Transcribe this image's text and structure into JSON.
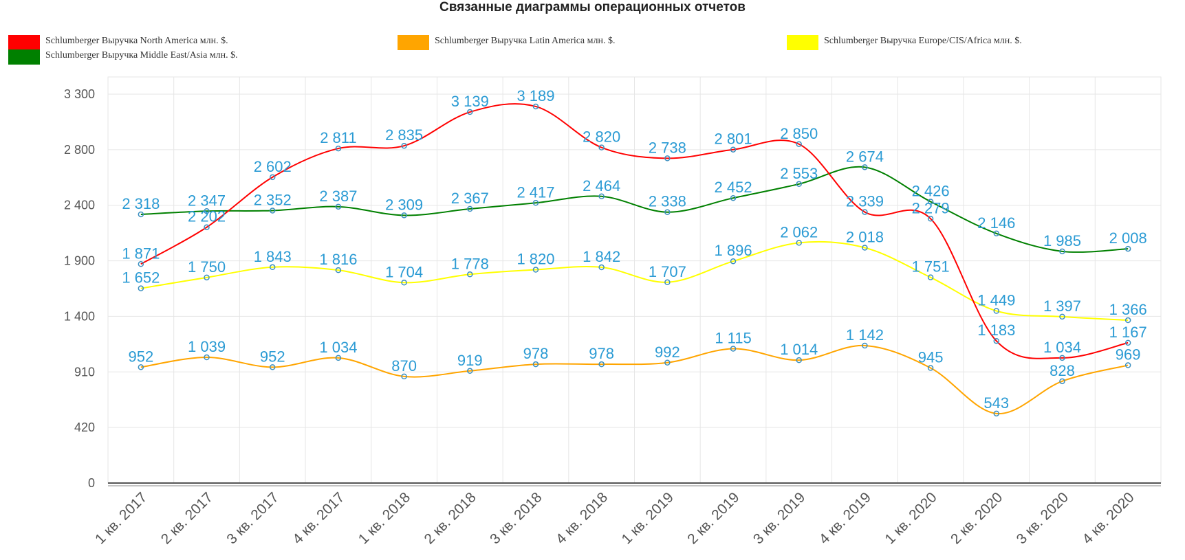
{
  "chart_data": {
    "type": "line",
    "title": "Связанные диаграммы операционных отчетов",
    "xlabel": "",
    "ylabel": "",
    "categories": [
      "1 кв. 2017",
      "2 кв. 2017",
      "3 кв. 2017",
      "4 кв. 2017",
      "1 кв. 2018",
      "2 кв. 2018",
      "3 кв. 2018",
      "4 кв. 2018",
      "1 кв. 2019",
      "2 кв. 2019",
      "3 кв. 2019",
      "4 кв. 2019",
      "1 кв. 2020",
      "2 кв. 2020",
      "3 кв. 2020",
      "4 кв. 2020"
    ],
    "yticks": [
      0,
      420,
      910,
      1400,
      1900,
      2400,
      2800,
      3300
    ],
    "ytick_labels": [
      "0",
      "420",
      "910",
      "1 400",
      "1 900",
      "2 400",
      "2 800",
      "3 300"
    ],
    "grid": true,
    "legend_position": "top",
    "series": [
      {
        "name": "Schlumberger Выручка North America млн. $.",
        "color": "#ff0000",
        "values": [
          1871,
          2202,
          2602,
          2811,
          2835,
          3139,
          3189,
          2820,
          2738,
          2801,
          2850,
          2339,
          2279,
          1183,
          1034,
          1167
        ],
        "labels": [
          "1 871",
          "2 202",
          "2 602",
          "2 811",
          "2 835",
          "3 139",
          "3 189",
          "2 820",
          "2 738",
          "2 801",
          "2 850",
          "2 339",
          "2 279",
          "1 183",
          "1 034",
          "1 167"
        ]
      },
      {
        "name": "Schlumberger Выручка Latin America млн. $.",
        "color": "#ffa500",
        "values": [
          952,
          1039,
          952,
          1034,
          870,
          919,
          978,
          978,
          992,
          1115,
          1014,
          1142,
          945,
          543,
          828,
          969
        ],
        "labels": [
          "952",
          "1 039",
          "952",
          "1 034",
          "870",
          "919",
          "978",
          "978",
          "992",
          "1 115",
          "1 014",
          "1 142",
          "945",
          "543",
          "828",
          "969"
        ]
      },
      {
        "name": "Schlumberger Выручка Europe/CIS/Africa млн. $.",
        "color": "#ffff00",
        "values": [
          1652,
          1750,
          1843,
          1816,
          1704,
          1778,
          1820,
          1842,
          1707,
          1896,
          2062,
          2018,
          1751,
          1449,
          1397,
          1366
        ],
        "labels": [
          "1 652",
          "1 750",
          "1 843",
          "1 816",
          "1 704",
          "1 778",
          "1 820",
          "1 842",
          "1 707",
          "1 896",
          "2 062",
          "2 018",
          "1 751",
          "1 449",
          "1 397",
          "1 366"
        ]
      },
      {
        "name": "Schlumberger Выручка Middle East/Asia млн. $.",
        "color": "#008000",
        "values": [
          2318,
          2347,
          2352,
          2387,
          2309,
          2367,
          2417,
          2464,
          2338,
          2452,
          2553,
          2674,
          2426,
          2146,
          1985,
          2008
        ],
        "labels": [
          "2 318",
          "2 347",
          "2 352",
          "2 387",
          "2 309",
          "2 367",
          "2 417",
          "2 464",
          "2 338",
          "2 452",
          "2 553",
          "2 674",
          "2 426",
          "2 146",
          "1 985",
          "2 008"
        ]
      }
    ]
  }
}
